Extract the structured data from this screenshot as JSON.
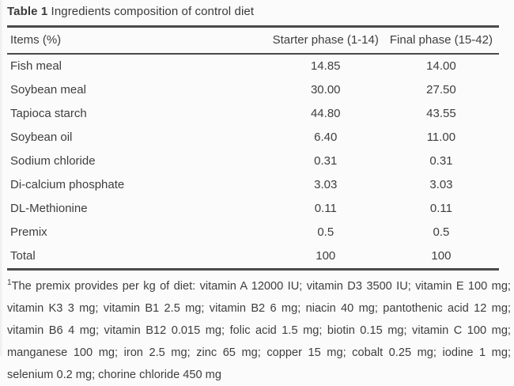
{
  "title": {
    "label": "Table 1",
    "text": " Ingredients composition of control diet"
  },
  "table": {
    "columns": [
      "Items (%)",
      "Starter phase (1-14)",
      "Final phase (15-42)"
    ],
    "rows": [
      [
        "Fish meal",
        "14.85",
        "14.00"
      ],
      [
        "Soybean meal",
        "30.00",
        "27.50"
      ],
      [
        "Tapioca starch",
        "44.80",
        "43.55"
      ],
      [
        "Soybean oil",
        "6.40",
        "11.00"
      ],
      [
        "Sodium chloride",
        "0.31",
        "0.31"
      ],
      [
        "Di-calcium phosphate",
        "3.03",
        "3.03"
      ],
      [
        "DL-Methionine",
        "0.11",
        "0.11"
      ],
      [
        "Premix",
        "0.5",
        "0.5"
      ],
      [
        "Total",
        "100",
        "100"
      ]
    ]
  },
  "footnote": {
    "marker": "1",
    "text": "The premix provides per kg of diet: vitamin A 12000 IU; vitamin D3 3500 IU; vitamin E 100 mg; vitamin K3 3 mg; vitamin B1 2.5 mg; vitamin B2 6 mg; niacin 40 mg; pantothenic acid 12 mg; vitamin B6 4 mg; vitamin B12 0.015 mg; folic acid 1.5 mg; biotin 0.15 mg; vitamin C 100 mg; manganese 100 mg; iron 2.5 mg; zinc 65 mg; copper 15 mg; cobalt 0.25 mg; iodine 1 mg; selenium 0.2 mg; chorine chloride 450 mg"
  },
  "colors": {
    "rule": "#4a4a4a",
    "text": "#3e3e3e",
    "background": "#fbfbfb"
  }
}
